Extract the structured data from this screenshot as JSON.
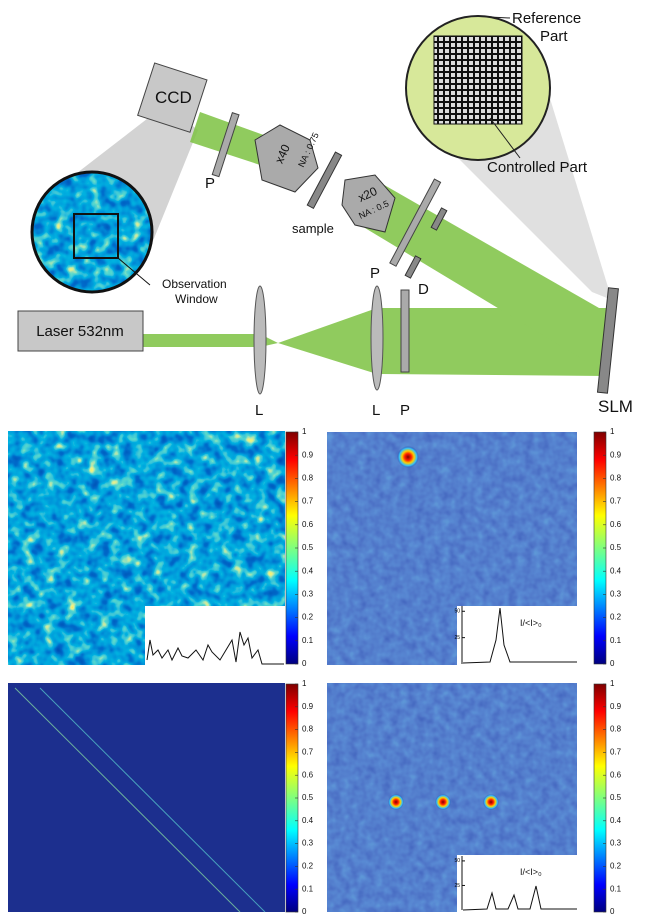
{
  "setup": {
    "ccd": "CCD",
    "polarizer_ccd": "P",
    "objective_x40": "x40",
    "objective_x40_na": "NA : 0.75",
    "sample": "sample",
    "objective_x20": "x20",
    "objective_x20_na": "NA : 0.5",
    "polarizer_beam": "P",
    "diaphragm": "D",
    "reference_part": [
      "Reference",
      "Part"
    ],
    "controlled_part": "Controlled Part",
    "observation_window": [
      "Observation",
      "Window"
    ],
    "laser": "Laser 532nm",
    "lens_1": "L",
    "lens_2": "L",
    "polarizer_laser": "P",
    "slm": "SLM"
  },
  "panels": [
    {
      "colorbar": {
        "lim": [
          0,
          1
        ],
        "ticks": [
          0,
          0.1,
          0.2,
          0.3,
          0.4,
          0.5,
          0.6,
          0.7,
          0.8,
          0.9,
          1
        ]
      }
    },
    {
      "colorbar": {
        "lim": [
          0,
          1
        ],
        "ticks": [
          0,
          0.1,
          0.2,
          0.3,
          0.4,
          0.5,
          0.6,
          0.7,
          0.8,
          0.9,
          1
        ]
      },
      "inset": {
        "label": "I/<I>₀",
        "ylim": [
          0,
          55
        ],
        "yticks": [
          25,
          50
        ]
      }
    },
    {
      "colorbar": {
        "lim": [
          0,
          1
        ],
        "ticks": [
          0,
          0.1,
          0.2,
          0.3,
          0.4,
          0.5,
          0.6,
          0.7,
          0.8,
          0.9,
          1
        ]
      }
    },
    {
      "colorbar": {
        "lim": [
          0,
          1
        ],
        "ticks": [
          0,
          0.1,
          0.2,
          0.3,
          0.4,
          0.5,
          0.6,
          0.7,
          0.8,
          0.9,
          1
        ]
      },
      "inset": {
        "label": "I/<I>₀",
        "ylim": [
          0,
          55
        ],
        "yticks": [
          25,
          50
        ]
      }
    }
  ]
}
